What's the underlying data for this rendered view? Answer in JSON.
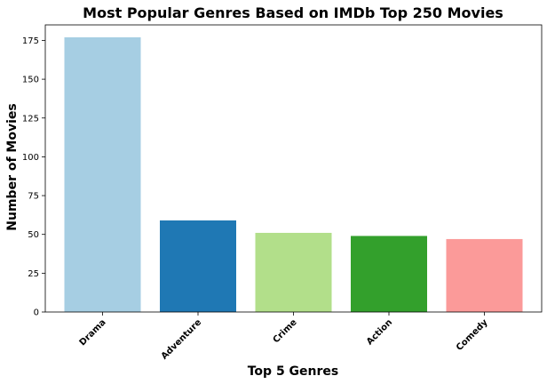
{
  "chart_data": {
    "type": "bar",
    "title": "Most Popular Genres Based on IMDb Top 250 Movies",
    "xlabel": "Top 5 Genres",
    "ylabel": "Number of Movies",
    "categories": [
      "Drama",
      "Adventure",
      "Crime",
      "Action",
      "Comedy"
    ],
    "values": [
      177,
      59,
      51,
      49,
      47
    ],
    "colors": [
      "#a6cee3",
      "#1f78b4",
      "#b2df8a",
      "#33a02c",
      "#fb9a99"
    ],
    "ylim": [
      0,
      185
    ],
    "yticks": [
      0,
      25,
      50,
      75,
      100,
      125,
      150,
      175
    ],
    "grid": false,
    "legend": "none"
  }
}
